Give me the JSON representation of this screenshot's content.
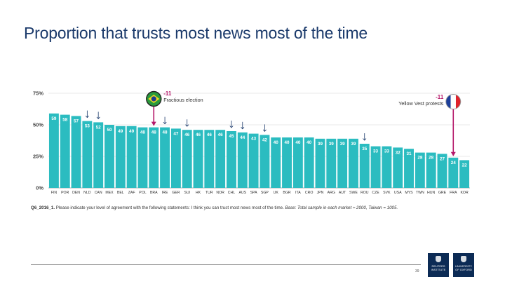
{
  "slide": {
    "title": "Proportion that trusts most news most of the time",
    "page_number": "39"
  },
  "chart_data": {
    "type": "bar",
    "categories": [
      "FIN",
      "POR",
      "DEN",
      "NLD",
      "CAN",
      "MEX",
      "BEL",
      "ZAF",
      "POL",
      "BRA",
      "IRE",
      "GER",
      "SUI",
      "HK",
      "TUR",
      "NOR",
      "CHL",
      "AUS",
      "SPA",
      "SGP",
      "UK",
      "BGR",
      "ITA",
      "CRO",
      "JPN",
      "ARG",
      "AUT",
      "SWE",
      "ROU",
      "CZE",
      "SVK",
      "USA",
      "MYS",
      "TWN",
      "HUN",
      "GRE",
      "FRA",
      "KOR"
    ],
    "values": [
      59,
      58,
      57,
      53,
      52,
      50,
      49,
      49,
      48,
      48,
      48,
      47,
      46,
      46,
      46,
      46,
      45,
      44,
      43,
      42,
      40,
      40,
      40,
      40,
      39,
      39,
      39,
      39,
      35,
      33,
      33,
      32,
      31,
      28,
      28,
      27,
      24,
      22
    ],
    "ylim": [
      0,
      75
    ],
    "yticks": [
      "0%",
      "25%",
      "50%",
      "75%"
    ],
    "ytick_values": [
      0,
      25,
      50,
      75
    ],
    "grid": true,
    "bar_color": "#2bbcc0",
    "highlight_color": "#b5186a",
    "down_arrow_markers": [
      "NLD",
      "CAN",
      "IRE",
      "SUI",
      "CHL",
      "AUS",
      "SGP",
      "ROU"
    ],
    "annotations": [
      {
        "category": "BRA",
        "value_label": "-11",
        "text": "Fractious election",
        "flag": "brazil-flag"
      },
      {
        "category": "FRA",
        "value_label": "-11",
        "text": "Yellow Vest protests",
        "flag": "france-flag"
      }
    ]
  },
  "footnote": {
    "question": "Q6_2016_1.",
    "text": " Please indicate your level of agreement with the following statements: I think you can trust most news most of the time. ",
    "base": "Base: Total sample in each market ≈ 2000, Taiwan = 1005."
  },
  "logos": {
    "reuters": "REUTERS INSTITUTE",
    "oxford": "UNIVERSITY OF OXFORD"
  }
}
